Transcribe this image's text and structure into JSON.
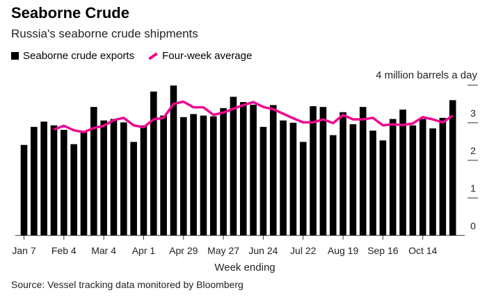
{
  "chart_data": {
    "type": "bar",
    "title": "Seaborne Crude",
    "subtitle": "Russia's seaborne crude shipments",
    "xlabel": "Week ending",
    "ylabel": "4 million barrels a day",
    "ylim": [
      0,
      4
    ],
    "yticks": [
      "0",
      "1",
      "2",
      "3"
    ],
    "xtick_labels": [
      "Jan 7",
      "Feb 4",
      "Mar 4",
      "Apr 1",
      "Apr 29",
      "May 27",
      "Jun 24",
      "Jul 22",
      "Aug 19",
      "Sep 16",
      "Oct 14"
    ],
    "legend": [
      "Seaborne crude exports",
      "Four-week average"
    ],
    "legend_position": "top-left",
    "grid": false,
    "series": [
      {
        "name": "Seaborne crude exports",
        "type": "bar",
        "color": "#000000",
        "values": [
          2.41,
          2.89,
          3.03,
          2.93,
          2.81,
          2.43,
          2.75,
          3.42,
          3.06,
          3.1,
          3.01,
          2.49,
          2.93,
          3.83,
          3.19,
          3.99,
          3.15,
          3.23,
          3.19,
          3.17,
          3.39,
          3.69,
          3.55,
          3.48,
          2.89,
          3.47,
          3.06,
          3.0,
          2.49,
          3.44,
          3.42,
          2.67,
          3.28,
          2.96,
          3.42,
          2.79,
          2.53,
          3.1,
          3.35,
          2.93,
          3.1,
          2.85,
          3.13,
          3.6
        ]
      },
      {
        "name": "Four-week average",
        "type": "line",
        "color": "#f0068d",
        "values": [
          null,
          null,
          null,
          2.82,
          2.92,
          2.8,
          2.75,
          2.86,
          2.92,
          3.07,
          3.13,
          2.93,
          2.88,
          3.09,
          3.13,
          3.5,
          3.56,
          3.41,
          3.41,
          3.21,
          3.27,
          3.37,
          3.47,
          3.55,
          3.42,
          3.36,
          3.24,
          3.12,
          3.01,
          3.01,
          3.09,
          2.99,
          3.21,
          3.09,
          3.09,
          3.13,
          2.93,
          2.96,
          2.94,
          2.98,
          3.15,
          3.09,
          3.01,
          3.19
        ]
      }
    ]
  },
  "source": "Source: Vessel tracking data monitored by Bloomberg"
}
